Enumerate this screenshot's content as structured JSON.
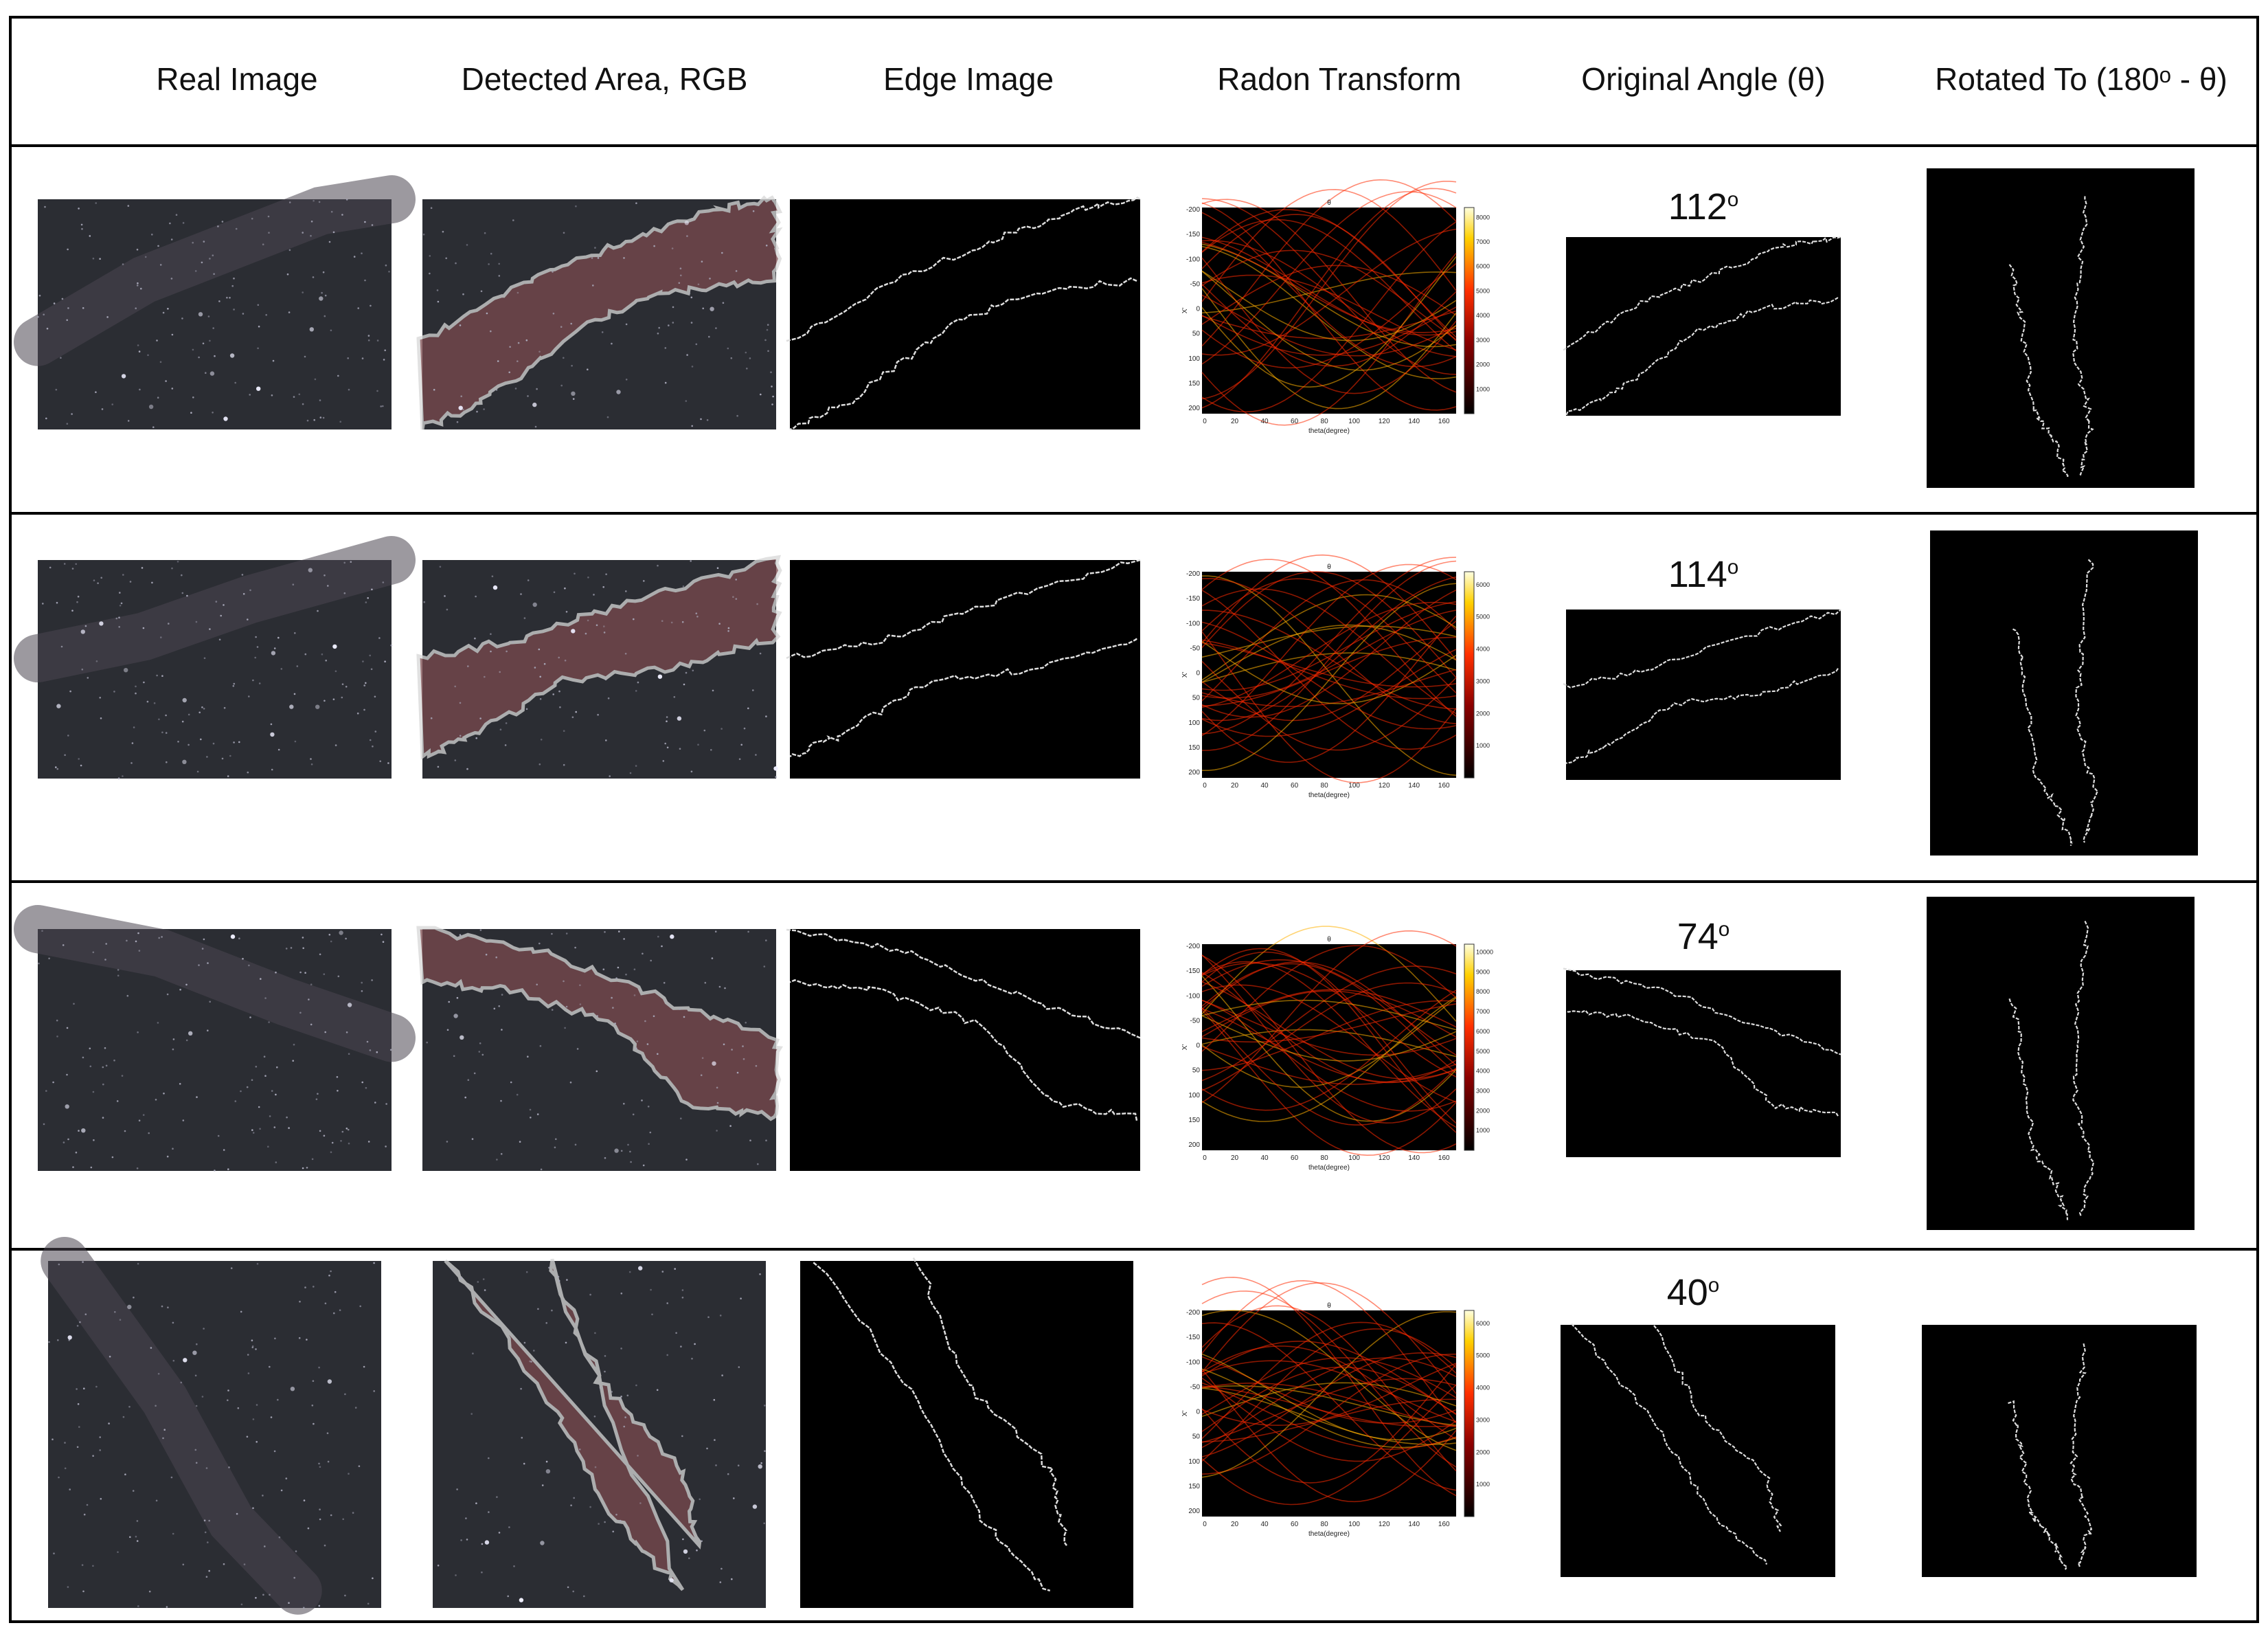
{
  "columns": {
    "real_image": "Real Image",
    "detected_area": "Detected Area, RGB",
    "edge_image": "Edge Image",
    "radon_transform": "Radon Transform",
    "original_angle": "Original Angle (θ)",
    "rotated_to": "Rotated To (180ᵒ - θ)"
  },
  "radon_axis": {
    "title": "θ",
    "xlabel": "theta(degree)",
    "ylabel": "X'",
    "xticks": [
      "0",
      "20",
      "40",
      "60",
      "80",
      "100",
      "120",
      "140",
      "160"
    ],
    "yticks": [
      "-200",
      "-150",
      "-100",
      "-50",
      "0",
      "50",
      "100",
      "150",
      "200"
    ]
  },
  "rows": [
    {
      "angle": "112",
      "angle_unit": "o",
      "colorbar_ticks": [
        "1000",
        "2000",
        "3000",
        "4000",
        "5000",
        "6000",
        "7000",
        "8000"
      ]
    },
    {
      "angle": "114",
      "angle_unit": "o",
      "colorbar_ticks": [
        "1000",
        "2000",
        "3000",
        "4000",
        "5000",
        "6000"
      ]
    },
    {
      "angle": "74",
      "angle_unit": "o",
      "colorbar_ticks": [
        "1000",
        "2000",
        "3000",
        "4000",
        "5000",
        "6000",
        "7000",
        "8000",
        "9000",
        "10000"
      ]
    },
    {
      "angle": "40",
      "angle_unit": "o",
      "colorbar_ticks": [
        "1000",
        "2000",
        "3000",
        "4000",
        "5000",
        "6000"
      ]
    }
  ],
  "colors": {
    "sky": "#2b2d33",
    "overlay": "#7a4a4e",
    "outline": "#d8d8d8",
    "radon_low": "#000000",
    "radon_high": "#ff2a00"
  }
}
